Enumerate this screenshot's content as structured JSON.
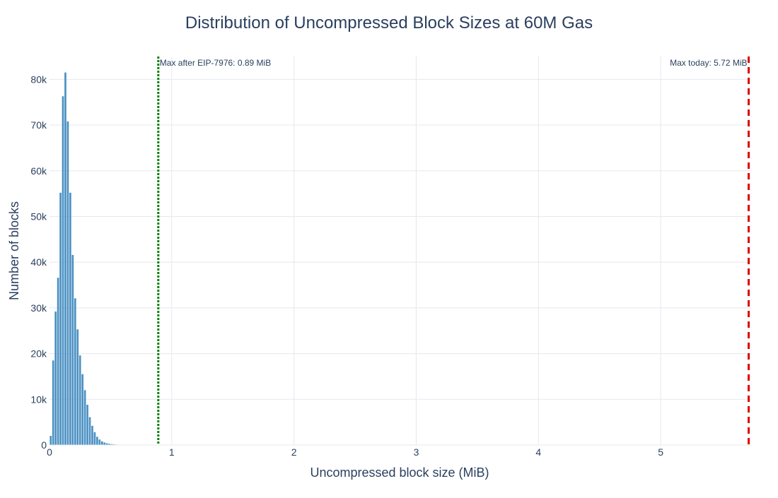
{
  "chart_data": {
    "type": "bar",
    "title": "Distribution of Uncompressed Block Sizes at 60M Gas",
    "xlabel": "Uncompressed block size (MiB)",
    "ylabel": "Number of blocks",
    "xlim": [
      0,
      5.74
    ],
    "ylim": [
      0,
      85000
    ],
    "x_ticks": [
      0,
      1,
      2,
      3,
      4,
      5
    ],
    "x_tick_labels": [
      "0",
      "1",
      "2",
      "3",
      "4",
      "5"
    ],
    "y_ticks": [
      0,
      10000,
      20000,
      30000,
      40000,
      50000,
      60000,
      70000,
      80000
    ],
    "y_tick_labels": [
      "0",
      "10k",
      "20k",
      "30k",
      "40k",
      "50k",
      "60k",
      "70k",
      "80k"
    ],
    "grid": true,
    "bin_width": 0.02,
    "bin_start": 0,
    "values": [
      2000,
      18500,
      29200,
      36600,
      55200,
      76300,
      81500,
      70800,
      55200,
      41600,
      32100,
      25300,
      19600,
      15500,
      12000,
      8800,
      6100,
      4200,
      2800,
      1800,
      1200,
      800,
      550,
      380,
      270,
      190,
      130,
      95,
      70,
      50,
      35,
      25,
      18,
      12,
      8,
      6,
      4,
      3,
      2,
      1
    ],
    "bar_color": "#4a90c2",
    "annotations": [
      {
        "x": 0.89,
        "text": "Max after EIP-7976: 0.89 MiB",
        "color": "#008000",
        "style": "dotted"
      },
      {
        "x": 5.72,
        "text": "Max today: 5.72 MiB",
        "color": "#e00000",
        "style": "dashed"
      }
    ]
  }
}
